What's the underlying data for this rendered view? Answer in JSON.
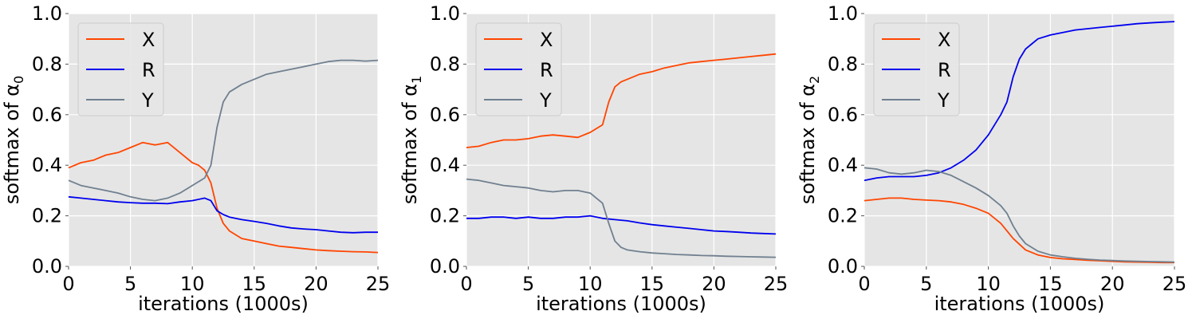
{
  "chart_data": [
    {
      "type": "line",
      "xlabel": "iterations (1000s)",
      "ylabel": "softmax of α",
      "ylabel_subscript": "0",
      "xlim": [
        0,
        25
      ],
      "ylim": [
        0,
        1
      ],
      "xticks": [
        0,
        5,
        10,
        15,
        20,
        25
      ],
      "yticks": [
        0.0,
        0.2,
        0.4,
        0.6,
        0.8,
        1.0
      ],
      "ytick_labels": [
        "0.0",
        "0.2",
        "0.4",
        "0.6",
        "0.8",
        "1.0"
      ],
      "grid": true,
      "legend": "top-left",
      "background": "#e5e5e5",
      "series": [
        {
          "name": "X",
          "color": "#ff4500",
          "x": [
            0,
            1,
            2,
            3,
            4,
            5,
            6,
            7,
            8,
            9,
            10,
            10.5,
            11,
            11.5,
            12,
            12.5,
            13,
            14,
            15,
            16,
            17,
            18,
            19,
            20,
            21,
            22,
            23,
            24,
            25
          ],
          "y": [
            0.39,
            0.41,
            0.42,
            0.44,
            0.45,
            0.47,
            0.49,
            0.48,
            0.49,
            0.45,
            0.41,
            0.4,
            0.38,
            0.33,
            0.23,
            0.17,
            0.14,
            0.11,
            0.1,
            0.09,
            0.08,
            0.075,
            0.07,
            0.065,
            0.062,
            0.06,
            0.058,
            0.057,
            0.055
          ]
        },
        {
          "name": "R",
          "color": "#0000ee",
          "x": [
            0,
            1,
            2,
            3,
            4,
            5,
            6,
            7,
            8,
            9,
            10,
            11,
            11.5,
            12,
            12.5,
            13,
            14,
            15,
            16,
            17,
            18,
            19,
            20,
            21,
            22,
            23,
            24,
            25
          ],
          "y": [
            0.275,
            0.27,
            0.265,
            0.26,
            0.255,
            0.252,
            0.25,
            0.25,
            0.248,
            0.255,
            0.26,
            0.27,
            0.26,
            0.22,
            0.205,
            0.195,
            0.185,
            0.178,
            0.17,
            0.16,
            0.152,
            0.148,
            0.145,
            0.14,
            0.135,
            0.133,
            0.135,
            0.135
          ]
        },
        {
          "name": "Y",
          "color": "#708090",
          "x": [
            0,
            1,
            2,
            3,
            4,
            5,
            6,
            7,
            8,
            9,
            10,
            11,
            11.5,
            12,
            12.5,
            13,
            14,
            15,
            16,
            17,
            18,
            19,
            20,
            21,
            22,
            23,
            24,
            25
          ],
          "y": [
            0.34,
            0.32,
            0.31,
            0.3,
            0.29,
            0.275,
            0.265,
            0.26,
            0.27,
            0.29,
            0.32,
            0.35,
            0.4,
            0.55,
            0.65,
            0.69,
            0.72,
            0.74,
            0.76,
            0.77,
            0.78,
            0.79,
            0.8,
            0.81,
            0.815,
            0.815,
            0.812,
            0.815
          ]
        }
      ]
    },
    {
      "type": "line",
      "xlabel": "iterations (1000s)",
      "ylabel": "softmax of α",
      "ylabel_subscript": "1",
      "xlim": [
        0,
        25
      ],
      "ylim": [
        0,
        1
      ],
      "xticks": [
        0,
        5,
        10,
        15,
        20,
        25
      ],
      "yticks": [
        0.0,
        0.2,
        0.4,
        0.6,
        0.8,
        1.0
      ],
      "ytick_labels": [
        "0.0",
        "0.2",
        "0.4",
        "0.6",
        "0.8",
        "1.0"
      ],
      "grid": true,
      "legend": "top-left",
      "background": "#e5e5e5",
      "series": [
        {
          "name": "X",
          "color": "#ff4500",
          "x": [
            0,
            1,
            2,
            3,
            4,
            5,
            6,
            7,
            8,
            9,
            10,
            11,
            11.5,
            12,
            12.5,
            13,
            14,
            15,
            16,
            17,
            18,
            19,
            20,
            21,
            22,
            23,
            24,
            25
          ],
          "y": [
            0.47,
            0.475,
            0.49,
            0.5,
            0.5,
            0.505,
            0.515,
            0.52,
            0.515,
            0.51,
            0.53,
            0.56,
            0.65,
            0.71,
            0.73,
            0.74,
            0.76,
            0.77,
            0.785,
            0.795,
            0.805,
            0.81,
            0.815,
            0.82,
            0.825,
            0.83,
            0.835,
            0.84
          ]
        },
        {
          "name": "R",
          "color": "#0000ee",
          "x": [
            0,
            1,
            2,
            3,
            4,
            5,
            6,
            7,
            8,
            9,
            10,
            11,
            12,
            13,
            14,
            15,
            16,
            17,
            18,
            19,
            20,
            21,
            22,
            23,
            24,
            25
          ],
          "y": [
            0.19,
            0.19,
            0.195,
            0.195,
            0.19,
            0.195,
            0.19,
            0.19,
            0.195,
            0.195,
            0.2,
            0.19,
            0.185,
            0.18,
            0.172,
            0.165,
            0.16,
            0.155,
            0.15,
            0.145,
            0.14,
            0.138,
            0.135,
            0.132,
            0.13,
            0.128
          ]
        },
        {
          "name": "Y",
          "color": "#708090",
          "x": [
            0,
            1,
            2,
            3,
            4,
            5,
            6,
            7,
            8,
            9,
            10,
            11,
            11.5,
            12,
            12.5,
            13,
            14,
            15,
            16,
            17,
            18,
            19,
            20,
            21,
            22,
            23,
            24,
            25
          ],
          "y": [
            0.345,
            0.34,
            0.33,
            0.32,
            0.315,
            0.31,
            0.3,
            0.295,
            0.3,
            0.3,
            0.29,
            0.25,
            0.17,
            0.1,
            0.075,
            0.065,
            0.058,
            0.053,
            0.05,
            0.047,
            0.045,
            0.043,
            0.042,
            0.04,
            0.039,
            0.038,
            0.037,
            0.036
          ]
        }
      ]
    },
    {
      "type": "line",
      "xlabel": "iterations (1000s)",
      "ylabel": "softmax of α",
      "ylabel_subscript": "2",
      "xlim": [
        0,
        25
      ],
      "ylim": [
        0,
        1
      ],
      "xticks": [
        0,
        5,
        10,
        15,
        20,
        25
      ],
      "yticks": [
        0.0,
        0.2,
        0.4,
        0.6,
        0.8,
        1.0
      ],
      "ytick_labels": [
        "0.0",
        "0.2",
        "0.4",
        "0.6",
        "0.8",
        "1.0"
      ],
      "grid": true,
      "legend": "top-left",
      "background": "#e5e5e5",
      "series": [
        {
          "name": "X",
          "color": "#ff4500",
          "x": [
            0,
            1,
            2,
            3,
            4,
            5,
            6,
            7,
            8,
            9,
            10,
            11,
            12,
            13,
            14,
            15,
            16,
            17,
            18,
            19,
            20,
            21,
            22,
            23,
            24,
            25
          ],
          "y": [
            0.26,
            0.265,
            0.27,
            0.27,
            0.265,
            0.262,
            0.26,
            0.255,
            0.245,
            0.23,
            0.21,
            0.17,
            0.11,
            0.065,
            0.045,
            0.035,
            0.03,
            0.027,
            0.024,
            0.022,
            0.02,
            0.018,
            0.017,
            0.016,
            0.015,
            0.015
          ]
        },
        {
          "name": "R",
          "color": "#0000ee",
          "x": [
            0,
            1,
            2,
            3,
            4,
            5,
            6,
            7,
            8,
            9,
            10,
            11,
            11.5,
            12,
            12.5,
            13,
            13.5,
            14,
            15,
            16,
            17,
            18,
            19,
            20,
            21,
            22,
            23,
            24,
            25
          ],
          "y": [
            0.34,
            0.35,
            0.355,
            0.355,
            0.355,
            0.36,
            0.37,
            0.39,
            0.42,
            0.46,
            0.52,
            0.6,
            0.65,
            0.75,
            0.82,
            0.86,
            0.88,
            0.9,
            0.915,
            0.925,
            0.935,
            0.94,
            0.945,
            0.95,
            0.955,
            0.96,
            0.963,
            0.966,
            0.968
          ]
        },
        {
          "name": "Y",
          "color": "#708090",
          "x": [
            0,
            1,
            2,
            3,
            4,
            5,
            6,
            7,
            8,
            9,
            10,
            11,
            11.5,
            12,
            12.5,
            13,
            14,
            15,
            16,
            17,
            18,
            19,
            20,
            21,
            22,
            23,
            24,
            25
          ],
          "y": [
            0.39,
            0.385,
            0.37,
            0.365,
            0.37,
            0.38,
            0.375,
            0.36,
            0.335,
            0.31,
            0.28,
            0.24,
            0.21,
            0.16,
            0.12,
            0.09,
            0.06,
            0.045,
            0.038,
            0.032,
            0.028,
            0.025,
            0.023,
            0.021,
            0.02,
            0.019,
            0.018,
            0.017
          ]
        }
      ]
    }
  ]
}
